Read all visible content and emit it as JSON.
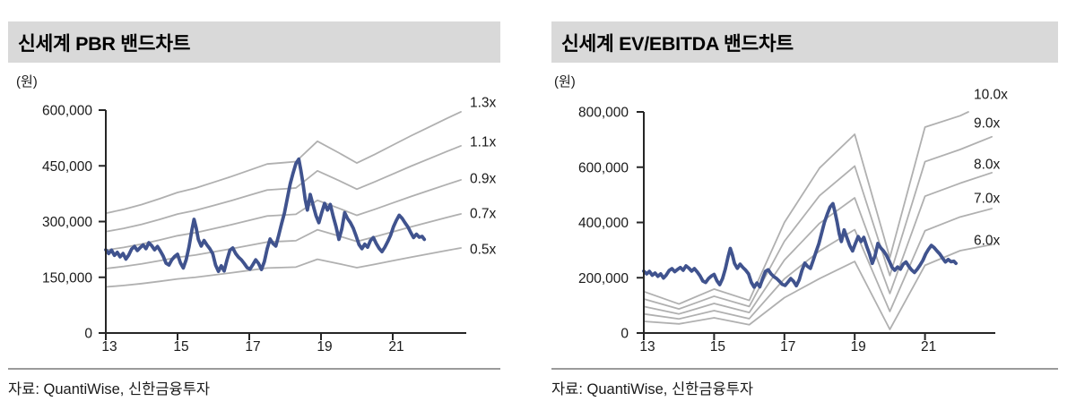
{
  "colors": {
    "title_bar_bg": "#d9d9d9",
    "title_text": "#000000",
    "axis": "#262626",
    "tick_label": "#1a1a1a",
    "band_line": "#b0b0b0",
    "price_line": "#40538e",
    "divider": "#9b9b9b",
    "source_text": "#1a1a1a"
  },
  "price_series_k": [
    [
      13.0,
      224
    ],
    [
      13.08,
      214
    ],
    [
      13.16,
      223
    ],
    [
      13.24,
      209
    ],
    [
      13.32,
      217
    ],
    [
      13.4,
      205
    ],
    [
      13.48,
      214
    ],
    [
      13.56,
      199
    ],
    [
      13.64,
      210
    ],
    [
      13.72,
      226
    ],
    [
      13.8,
      233
    ],
    [
      13.88,
      222
    ],
    [
      13.96,
      230
    ],
    [
      14.04,
      237
    ],
    [
      14.12,
      227
    ],
    [
      14.2,
      243
    ],
    [
      14.28,
      235
    ],
    [
      14.36,
      224
    ],
    [
      14.44,
      233
    ],
    [
      14.52,
      221
    ],
    [
      14.6,
      207
    ],
    [
      14.68,
      188
    ],
    [
      14.76,
      183
    ],
    [
      14.84,
      197
    ],
    [
      14.92,
      206
    ],
    [
      15.0,
      212
    ],
    [
      15.08,
      189
    ],
    [
      15.16,
      175
    ],
    [
      15.24,
      197
    ],
    [
      15.32,
      232
    ],
    [
      15.4,
      277
    ],
    [
      15.46,
      306
    ],
    [
      15.52,
      283
    ],
    [
      15.58,
      252
    ],
    [
      15.66,
      234
    ],
    [
      15.74,
      249
    ],
    [
      15.82,
      237
    ],
    [
      15.9,
      227
    ],
    [
      15.98,
      214
    ],
    [
      16.06,
      183
    ],
    [
      16.14,
      166
    ],
    [
      16.22,
      181
    ],
    [
      16.3,
      167
    ],
    [
      16.38,
      197
    ],
    [
      16.46,
      223
    ],
    [
      16.54,
      229
    ],
    [
      16.62,
      214
    ],
    [
      16.7,
      204
    ],
    [
      16.78,
      197
    ],
    [
      16.86,
      187
    ],
    [
      16.94,
      176
    ],
    [
      17.02,
      172
    ],
    [
      17.1,
      184
    ],
    [
      17.18,
      197
    ],
    [
      17.26,
      187
    ],
    [
      17.34,
      171
    ],
    [
      17.42,
      192
    ],
    [
      17.5,
      227
    ],
    [
      17.58,
      253
    ],
    [
      17.66,
      241
    ],
    [
      17.74,
      234
    ],
    [
      17.82,
      263
    ],
    [
      17.9,
      294
    ],
    [
      17.98,
      323
    ],
    [
      18.06,
      362
    ],
    [
      18.14,
      401
    ],
    [
      18.22,
      430
    ],
    [
      18.3,
      456
    ],
    [
      18.38,
      468
    ],
    [
      18.44,
      437
    ],
    [
      18.5,
      401
    ],
    [
      18.56,
      359
    ],
    [
      18.62,
      331
    ],
    [
      18.7,
      373
    ],
    [
      18.78,
      344
    ],
    [
      18.86,
      316
    ],
    [
      18.94,
      297
    ],
    [
      19.02,
      324
    ],
    [
      19.1,
      349
    ],
    [
      19.18,
      331
    ],
    [
      19.26,
      346
    ],
    [
      19.34,
      314
    ],
    [
      19.42,
      286
    ],
    [
      19.5,
      252
    ],
    [
      19.58,
      280
    ],
    [
      19.66,
      324
    ],
    [
      19.74,
      308
    ],
    [
      19.82,
      297
    ],
    [
      19.9,
      282
    ],
    [
      19.98,
      261
    ],
    [
      20.06,
      238
    ],
    [
      20.14,
      227
    ],
    [
      20.22,
      239
    ],
    [
      20.3,
      231
    ],
    [
      20.38,
      249
    ],
    [
      20.46,
      257
    ],
    [
      20.54,
      241
    ],
    [
      20.62,
      228
    ],
    [
      20.7,
      219
    ],
    [
      20.78,
      231
    ],
    [
      20.86,
      246
    ],
    [
      20.94,
      263
    ],
    [
      21.02,
      286
    ],
    [
      21.1,
      303
    ],
    [
      21.18,
      317
    ],
    [
      21.26,
      309
    ],
    [
      21.34,
      297
    ],
    [
      21.42,
      286
    ],
    [
      21.5,
      271
    ],
    [
      21.58,
      257
    ],
    [
      21.66,
      266
    ],
    [
      21.74,
      258
    ],
    [
      21.82,
      260
    ],
    [
      21.88,
      252
    ]
  ],
  "chart_data": [
    {
      "type": "line",
      "title": "신세계 PBR 밴드차트",
      "unit_label": "(원)",
      "source": "자료: QuantiWise, 신한금융투자",
      "ylim": [
        0,
        600000
      ],
      "yticks": [
        0,
        150000,
        300000,
        450000,
        600000
      ],
      "ytick_labels": [
        "0",
        "150,000",
        "300,000",
        "450,000",
        "600,000"
      ],
      "xticks": [
        13,
        15,
        17,
        19,
        21
      ],
      "xtick_labels": [
        "13",
        "15",
        "17",
        "19",
        "21"
      ],
      "grid": false,
      "legend_position": "right-of-band-ends",
      "bands": {
        "kind": "multiple_of_base",
        "labels": [
          "1.3x",
          "1.1x",
          "0.9x",
          "0.7x",
          "0.5x"
        ],
        "multiples": [
          1.3,
          1.1,
          0.9,
          0.7,
          0.5
        ],
        "base_points_k": [
          [
            13,
            248
          ],
          [
            13.5,
            256
          ],
          [
            14,
            266
          ],
          [
            14.5,
            278
          ],
          [
            15,
            291
          ],
          [
            15.5,
            300
          ],
          [
            16,
            312
          ],
          [
            16.5,
            324
          ],
          [
            17,
            337
          ],
          [
            17.5,
            350
          ],
          [
            18,
            353
          ],
          [
            18.3,
            355
          ],
          [
            18.9,
            397
          ],
          [
            19.5,
            373
          ],
          [
            20,
            352
          ],
          [
            20.5,
            370
          ],
          [
            21,
            389
          ],
          [
            21.5,
            408
          ],
          [
            22,
            426
          ],
          [
            22.5,
            444
          ],
          [
            22.9,
            458
          ]
        ]
      }
    },
    {
      "type": "line",
      "title": "신세계 EV/EBITDA 밴드차트",
      "unit_label": "(원)",
      "source": "자료: QuantiWise, 신한금융투자",
      "ylim": [
        0,
        800000
      ],
      "yticks": [
        0,
        200000,
        400000,
        600000,
        800000
      ],
      "ytick_labels": [
        "0",
        "200,000",
        "400,000",
        "600,000",
        "800,000"
      ],
      "xticks": [
        13,
        15,
        17,
        19,
        21
      ],
      "xtick_labels": [
        "13",
        "15",
        "17",
        "19",
        "21"
      ],
      "grid": false,
      "legend_position": "right-of-band-ends",
      "bands": {
        "kind": "offset_plus_multiple",
        "labels": [
          "10.0x",
          "9.0x",
          "8.0x",
          "7.0x",
          "6.0x"
        ],
        "multiples": [
          10,
          9,
          8,
          7,
          6
        ],
        "points_k": [
          [
            13,
            -120,
            27
          ],
          [
            14,
            -75,
            18
          ],
          [
            15,
            -101,
            26
          ],
          [
            16,
            -102,
            22
          ],
          [
            17,
            -280,
            68
          ],
          [
            18,
            -403,
            100
          ],
          [
            19,
            -431,
            115
          ],
          [
            20,
            -377,
            65
          ],
          [
            21,
            -505,
            125
          ],
          [
            22,
            -434,
            122
          ],
          [
            22.9,
            -460,
            130
          ]
        ]
      }
    }
  ]
}
